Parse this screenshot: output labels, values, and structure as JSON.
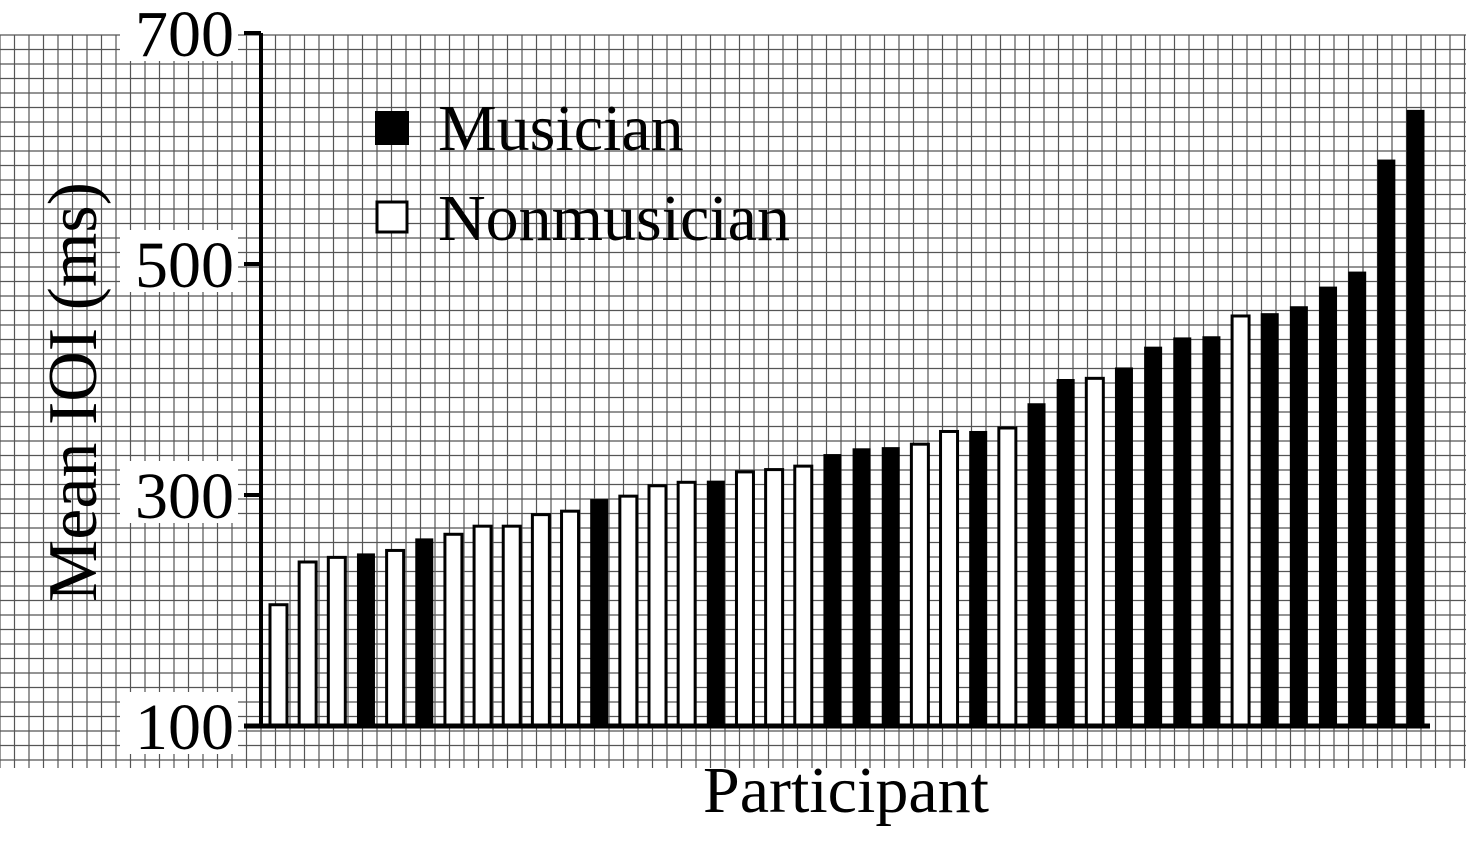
{
  "chart_data": {
    "type": "bar",
    "xlabel": "Participant",
    "ylabel": "Mean IOI (ms)",
    "ylim": [
      100,
      700
    ],
    "yticks": [
      100,
      300,
      500,
      700
    ],
    "grid": true,
    "legend_position": "top-left",
    "series": [
      {
        "name": "Musician",
        "color": "#000000"
      },
      {
        "name": "Nonmusician",
        "color": "#ffffff"
      }
    ],
    "bars": [
      {
        "group": "Nonmusician",
        "value": 205
      },
      {
        "group": "Nonmusician",
        "value": 242
      },
      {
        "group": "Nonmusician",
        "value": 246
      },
      {
        "group": "Musician",
        "value": 249
      },
      {
        "group": "Nonmusician",
        "value": 252
      },
      {
        "group": "Musician",
        "value": 262
      },
      {
        "group": "Nonmusician",
        "value": 266
      },
      {
        "group": "Nonmusician",
        "value": 273
      },
      {
        "group": "Nonmusician",
        "value": 273
      },
      {
        "group": "Nonmusician",
        "value": 283
      },
      {
        "group": "Nonmusician",
        "value": 286
      },
      {
        "group": "Musician",
        "value": 296
      },
      {
        "group": "Nonmusician",
        "value": 299
      },
      {
        "group": "Nonmusician",
        "value": 308
      },
      {
        "group": "Nonmusician",
        "value": 311
      },
      {
        "group": "Musician",
        "value": 312
      },
      {
        "group": "Nonmusician",
        "value": 320
      },
      {
        "group": "Nonmusician",
        "value": 322
      },
      {
        "group": "Nonmusician",
        "value": 325
      },
      {
        "group": "Musician",
        "value": 335
      },
      {
        "group": "Musician",
        "value": 340
      },
      {
        "group": "Musician",
        "value": 341
      },
      {
        "group": "Nonmusician",
        "value": 344
      },
      {
        "group": "Nonmusician",
        "value": 355
      },
      {
        "group": "Musician",
        "value": 355
      },
      {
        "group": "Nonmusician",
        "value": 358
      },
      {
        "group": "Musician",
        "value": 379
      },
      {
        "group": "Musician",
        "value": 400
      },
      {
        "group": "Nonmusician",
        "value": 401
      },
      {
        "group": "Musician",
        "value": 410
      },
      {
        "group": "Musician",
        "value": 428
      },
      {
        "group": "Musician",
        "value": 436
      },
      {
        "group": "Musician",
        "value": 437
      },
      {
        "group": "Nonmusician",
        "value": 455
      },
      {
        "group": "Musician",
        "value": 457
      },
      {
        "group": "Musician",
        "value": 463
      },
      {
        "group": "Musician",
        "value": 480
      },
      {
        "group": "Musician",
        "value": 493
      },
      {
        "group": "Musician",
        "value": 590
      },
      {
        "group": "Musician",
        "value": 633
      }
    ]
  }
}
